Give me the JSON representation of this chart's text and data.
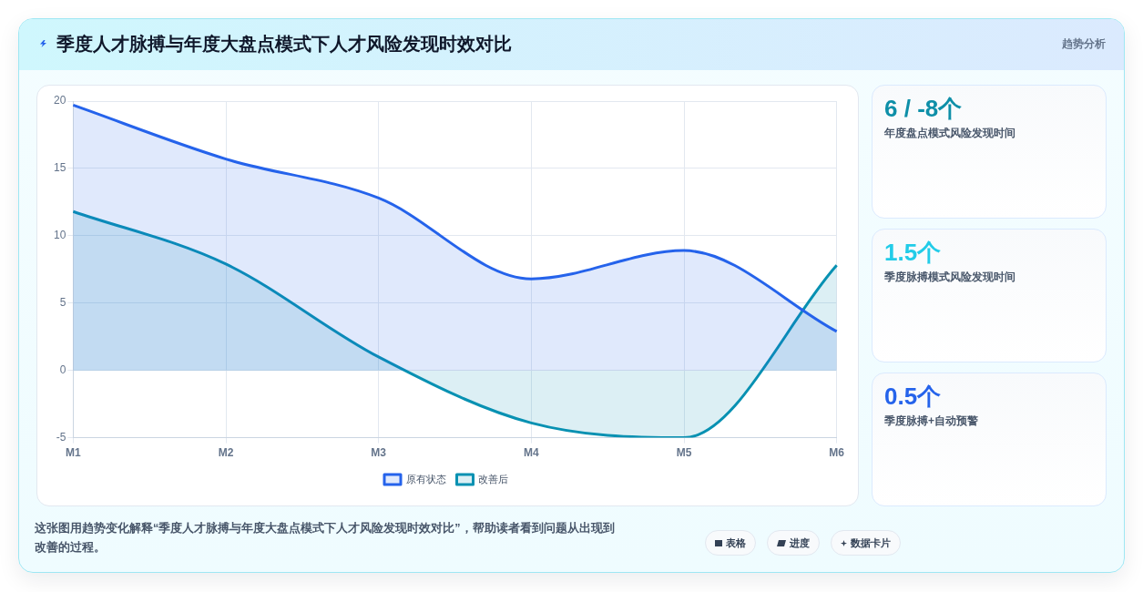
{
  "chart_data": {
    "type": "area",
    "title": "季度人才脉搏与年度大盘点模式下人才风险发现时效对比",
    "subtitle": "趋势分析",
    "categories": [
      "M1",
      "M2",
      "M3",
      "M4",
      "M5",
      "M6"
    ],
    "series": [
      {
        "name": "原有状态",
        "color": "#2563eb",
        "values": [
          19.7,
          15.7,
          12.8,
          6.8,
          8.9,
          2.9
        ]
      },
      {
        "name": "改善后",
        "color": "#0891b2",
        "values": [
          11.8,
          7.9,
          1.0,
          -3.9,
          -5.0,
          7.8
        ]
      }
    ],
    "ylim": [
      -5,
      20
    ],
    "yticks": [
      -5,
      0,
      5,
      10,
      15,
      20
    ],
    "grid": true,
    "legend": "bottom",
    "marker": "none",
    "annotations": [
      "6 / -8个",
      "年度盘点模式风险发现时间",
      "1.5个",
      "季度脉搏模式风险发现时间",
      "0.5个",
      "季度脉搏+自动预警",
      "这张图用趋势变化解释“季度人才脉搏与年度大盘点模式下人才风险发现时效对比”，帮助读者看到问题从出现到改善的过程。",
      "表格",
      "进度",
      "数据卡片"
    ]
  }
}
